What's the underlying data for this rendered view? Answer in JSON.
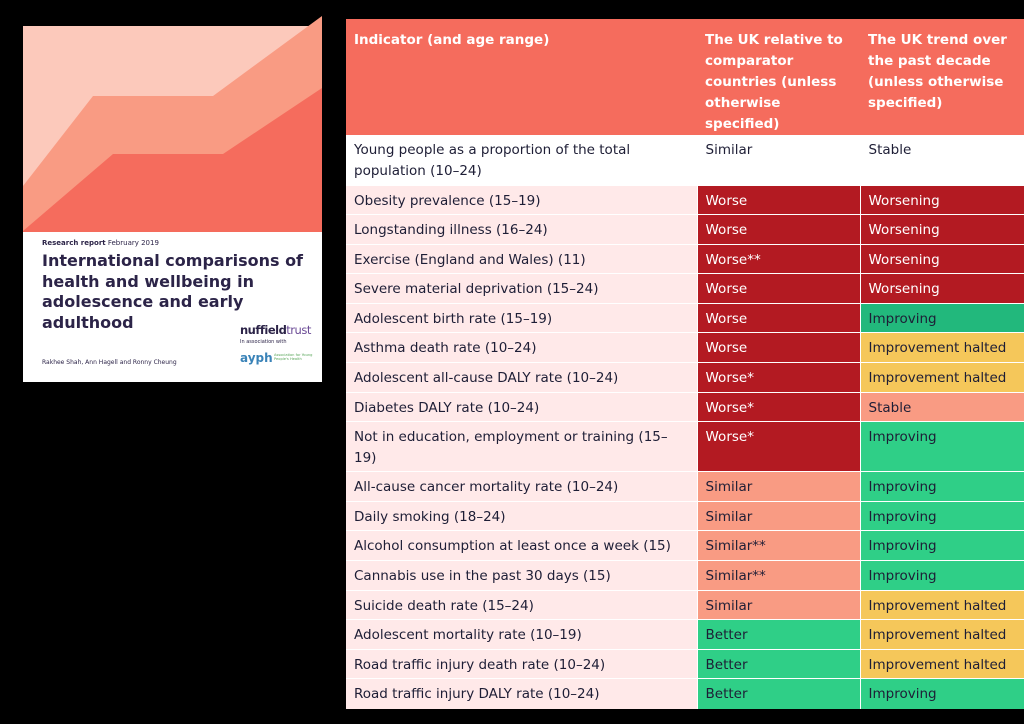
{
  "report": {
    "meta_bold": "Research report",
    "meta_date": "February 2019",
    "title": "International comparisons of health and wellbeing in adolescence and early adulthood",
    "authors": "Rakhee Shah, Ann Hagell and Ronny Cheung",
    "logo_nuffield_a": "nuffield",
    "logo_nuffield_b": "trust",
    "in_association": "In association with",
    "logo_ayph": "ayph",
    "logo_ayph_sub": "Association for Young People's Health",
    "colors": {
      "band_light": "#fcc9bb",
      "band_mid": "#f99b83",
      "band_dark": "#f56c5d",
      "ink": "#2c2448"
    }
  },
  "table": {
    "headers": [
      "Indicator (and age range)",
      "The UK relative to comparator countries (unless otherwise specified)",
      "The UK trend over the past decade (unless otherwise specified)"
    ],
    "colors": {
      "header": "#f56c5d",
      "dark_red": "#b31a22",
      "light_red": "#f99b83",
      "green": "#2fcf87",
      "teal": "#22b87c",
      "amber": "#f5c75a"
    },
    "rows": [
      {
        "indicator": "Young people as a proportion of the total population (10–24)",
        "relative": "Similar",
        "rel_color": "white",
        "trend": "Stable",
        "trend_color": "white"
      },
      {
        "indicator": "Obesity prevalence (15–19)",
        "relative": "Worse",
        "rel_color": "dark-red",
        "trend": "Worsening",
        "trend_color": "dark-red"
      },
      {
        "indicator": "Longstanding illness (16–24)",
        "relative": "Worse",
        "rel_color": "dark-red",
        "trend": "Worsening",
        "trend_color": "dark-red"
      },
      {
        "indicator": "Exercise (England and Wales) (11)",
        "relative": "Worse**",
        "rel_color": "dark-red",
        "trend": "Worsening",
        "trend_color": "dark-red"
      },
      {
        "indicator": "Severe material deprivation (15–24)",
        "relative": "Worse",
        "rel_color": "dark-red",
        "trend": "Worsening",
        "trend_color": "dark-red"
      },
      {
        "indicator": "Adolescent birth rate (15–19)",
        "relative": "Worse",
        "rel_color": "dark-red",
        "trend": "Improving",
        "trend_color": "teal"
      },
      {
        "indicator": "Asthma death rate (10–24)",
        "relative": "Worse",
        "rel_color": "dark-red",
        "trend": "Improvement halted",
        "trend_color": "amber"
      },
      {
        "indicator": "Adolescent all-cause DALY rate (10–24)",
        "relative": "Worse*",
        "rel_color": "dark-red",
        "trend": "Improvement halted",
        "trend_color": "amber"
      },
      {
        "indicator": "Diabetes DALY rate (10–24)",
        "relative": "Worse*",
        "rel_color": "dark-red",
        "trend": "Stable",
        "trend_color": "light-red"
      },
      {
        "indicator": "Not in education, employment or training (15–19)",
        "relative": "Worse*",
        "rel_color": "dark-red",
        "trend": "Improving",
        "trend_color": "green"
      },
      {
        "indicator": "All-cause cancer mortality rate (10–24)",
        "relative": "Similar",
        "rel_color": "light-red",
        "trend": "Improving",
        "trend_color": "green"
      },
      {
        "indicator": "Daily smoking (18–24)",
        "relative": "Similar",
        "rel_color": "light-red",
        "trend": "Improving",
        "trend_color": "green"
      },
      {
        "indicator": "Alcohol consumption at least once a week (15)",
        "relative": "Similar**",
        "rel_color": "light-red",
        "trend": "Improving",
        "trend_color": "green"
      },
      {
        "indicator": "Cannabis use in the past 30 days (15)",
        "relative": "Similar**",
        "rel_color": "light-red",
        "trend": "Improving",
        "trend_color": "green"
      },
      {
        "indicator": "Suicide death rate (15–24)",
        "relative": "Similar",
        "rel_color": "light-red",
        "trend": "Improvement halted",
        "trend_color": "amber"
      },
      {
        "indicator": "Adolescent mortality rate (10–19)",
        "relative": "Better",
        "rel_color": "green",
        "trend": "Improvement halted",
        "trend_color": "amber"
      },
      {
        "indicator": "Road traffic injury death rate (10–24)",
        "relative": "Better",
        "rel_color": "green",
        "trend": "Improvement halted",
        "trend_color": "amber"
      },
      {
        "indicator": "Road traffic injury DALY rate (10–24)",
        "relative": "Better",
        "rel_color": "green",
        "trend": "Improving",
        "trend_color": "green"
      }
    ]
  }
}
